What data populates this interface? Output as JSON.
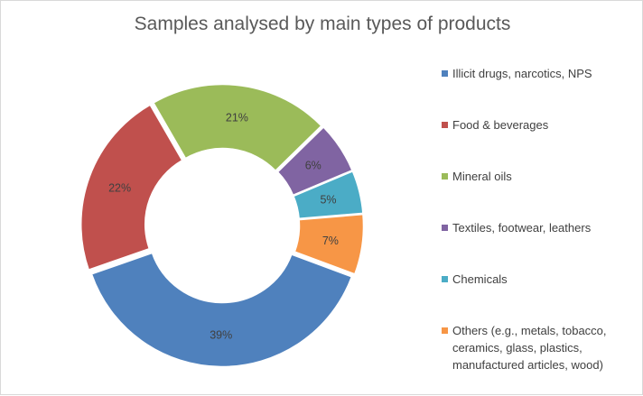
{
  "chart_data": {
    "type": "pie",
    "title": "Samples analysed by main types of products",
    "slices": [
      {
        "label": "Illicit drugs, narcotics, NPS",
        "value": 39,
        "value_label": "39%",
        "color": "#4F81BD"
      },
      {
        "label": "Food & beverages",
        "value": 22,
        "value_label": "22%",
        "color": "#C0504D"
      },
      {
        "label": "Mineral oils",
        "value": 21,
        "value_label": "21%",
        "color": "#9BBB59"
      },
      {
        "label": "Textiles, footwear, leathers",
        "value": 6,
        "value_label": "6%",
        "color": "#8064A2"
      },
      {
        "label": "Chemicals",
        "value": 5,
        "value_label": "5%",
        "color": "#4BACC6"
      },
      {
        "label": "Others (e.g., metals, tobacco, ceramics, glass, plastics, manufactured articles, wood)",
        "value": 7,
        "value_label": "7%",
        "color": "#F79646"
      }
    ],
    "style": "doughnut",
    "legend_position": "right"
  }
}
